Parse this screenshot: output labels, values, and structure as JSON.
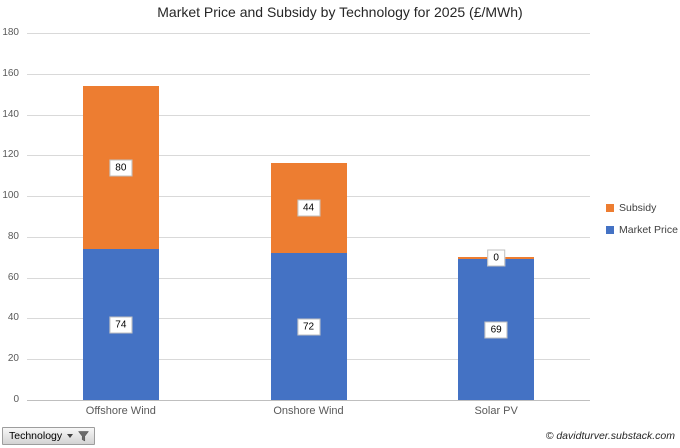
{
  "chart_data": {
    "type": "bar",
    "stacked": true,
    "title": "Market Price and Subsidy by Technology for 2025 (£/MWh)",
    "categories": [
      "Offshore Wind",
      "Onshore Wind",
      "Solar PV"
    ],
    "series": [
      {
        "name": "Market Price",
        "color": "#4472C4",
        "values": [
          74,
          72,
          69
        ]
      },
      {
        "name": "Subsidy",
        "color": "#ED7D31",
        "values": [
          80,
          44,
          0
        ]
      }
    ],
    "totals": [
      154,
      116,
      69
    ],
    "ylim": [
      0,
      180
    ],
    "ytick_step": 20,
    "grid": true,
    "data_labels": true,
    "legend_position": "right",
    "legend_order": [
      "Subsidy",
      "Market Price"
    ],
    "xlabel": "",
    "ylabel": ""
  },
  "field_button": {
    "label": "Technology"
  },
  "attribution": "© davidturver.substack.com",
  "colors": {
    "gridline": "#D9D9D9",
    "axis_line": "#BFBFBF",
    "tick_text": "#595959",
    "title_text": "#262626"
  }
}
